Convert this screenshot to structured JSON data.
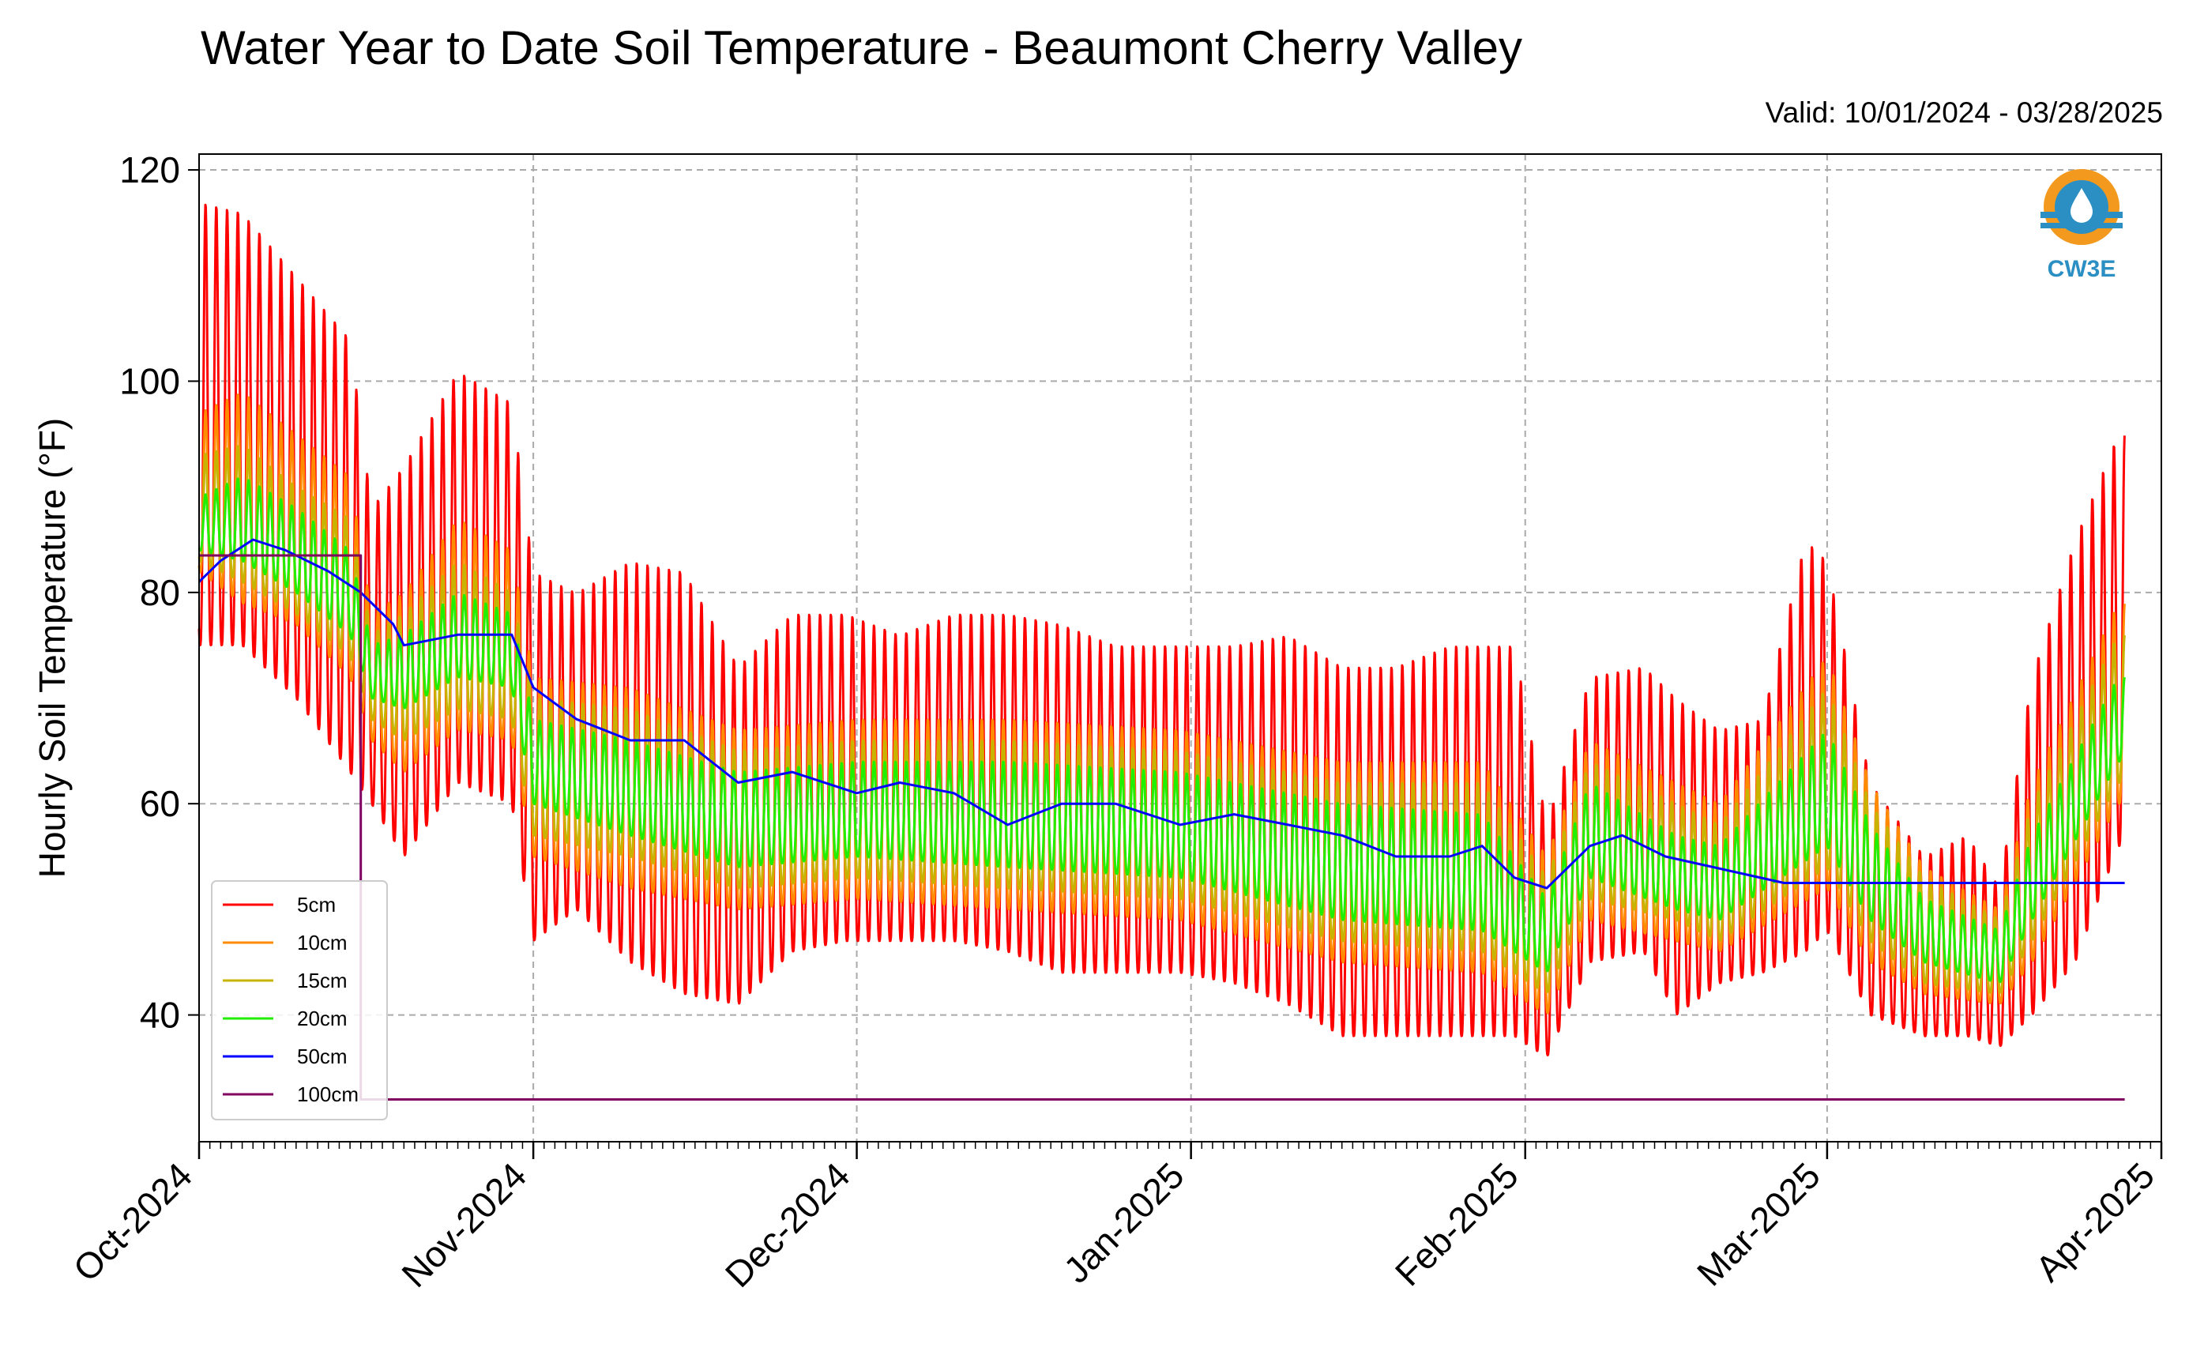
{
  "header": {
    "title": "Water Year to Date Soil Temperature - Beaumont Cherry Valley",
    "valid": "Valid: 10/01/2024 - 03/28/2025"
  },
  "logo": {
    "text": "CW3E",
    "icon": "water-drop-logo",
    "colors": {
      "orange": "#f39a1e",
      "blue": "#2b8fc4"
    }
  },
  "chart_data": {
    "type": "line",
    "title": "Water Year to Date Soil Temperature - Beaumont Cherry Valley",
    "subtitle": "Valid: 10/01/2024 - 03/28/2025",
    "ylabel": "Hourly Soil Temperature (°F)",
    "xlabel": "",
    "ylim": [
      28,
      121.5
    ],
    "xlim": [
      "2024-10-01",
      "2025-04-01"
    ],
    "yticks": [
      40,
      60,
      80,
      100,
      120
    ],
    "xticks": [
      "Oct-2024",
      "Nov-2024",
      "Dec-2024",
      "Jan-2025",
      "Feb-2025",
      "Mar-2025",
      "Apr-2025"
    ],
    "xtick_dates": [
      "2024-10-01",
      "2024-11-01",
      "2024-12-01",
      "2025-01-01",
      "2025-02-01",
      "2025-03-01",
      "2025-04-01"
    ],
    "grid": true,
    "legend_position": "lower-left",
    "envelope_note": "5-20cm series are hourly with a daily cycle; listed points give daily minima and maxima per date.",
    "series": [
      {
        "name": "5cm",
        "color": "#ff0000",
        "envelope": {
          "dates": [
            "2024-10-01",
            "2024-10-05",
            "2024-10-10",
            "2024-10-15",
            "2024-10-17",
            "2024-10-20",
            "2024-10-25",
            "2024-10-30",
            "2024-11-01",
            "2024-11-05",
            "2024-11-10",
            "2024-11-15",
            "2024-11-20",
            "2024-11-25",
            "2024-11-30",
            "2024-12-05",
            "2024-12-10",
            "2024-12-15",
            "2024-12-20",
            "2024-12-25",
            "2024-12-31",
            "2025-01-05",
            "2025-01-10",
            "2025-01-15",
            "2025-01-20",
            "2025-01-25",
            "2025-01-28",
            "2025-01-31",
            "2025-02-03",
            "2025-02-07",
            "2025-02-12",
            "2025-02-15",
            "2025-02-19",
            "2025-02-23",
            "2025-02-27",
            "2025-03-01",
            "2025-03-05",
            "2025-03-10",
            "2025-03-14",
            "2025-03-17",
            "2025-03-20",
            "2025-03-24",
            "2025-03-28"
          ],
          "max": [
            117,
            116,
            110,
            104,
            88,
            92,
            101,
            98,
            82,
            80,
            83,
            82,
            73,
            78,
            78,
            76,
            78,
            78,
            77,
            75,
            75,
            75,
            76,
            73,
            73,
            75,
            75,
            75,
            58,
            72,
            73,
            70,
            67,
            68,
            85,
            83,
            62,
            55,
            57,
            52,
            72,
            85,
            95
          ],
          "min": [
            75,
            75,
            70,
            63,
            60,
            55,
            62,
            60,
            47,
            50,
            45,
            42,
            41,
            46,
            47,
            47,
            47,
            46,
            44,
            44,
            44,
            43,
            41,
            38,
            38,
            38,
            38,
            38,
            36,
            45,
            46,
            40,
            43,
            44,
            46,
            48,
            40,
            38,
            38,
            37,
            40,
            45,
            56
          ]
        }
      },
      {
        "name": "10cm",
        "color": "#ff8c00",
        "envelope": {
          "dates": [
            "2024-10-01",
            "2024-10-05",
            "2024-10-10",
            "2024-10-15",
            "2024-10-17",
            "2024-10-20",
            "2024-10-25",
            "2024-10-30",
            "2024-11-01",
            "2024-11-10",
            "2024-11-20",
            "2024-12-01",
            "2024-12-15",
            "2024-12-31",
            "2025-01-15",
            "2025-01-28",
            "2025-02-03",
            "2025-02-07",
            "2025-02-15",
            "2025-02-19",
            "2025-03-01",
            "2025-03-05",
            "2025-03-10",
            "2025-03-17",
            "2025-03-20",
            "2025-03-28"
          ],
          "max": [
            97,
            99,
            95,
            91,
            78,
            80,
            87,
            84,
            72,
            71,
            67,
            68,
            68,
            67,
            64,
            64,
            55,
            66,
            62,
            60,
            74,
            62,
            54,
            50,
            62,
            79
          ],
          "min": [
            82,
            79,
            77,
            72,
            66,
            63,
            67,
            66,
            55,
            52,
            50,
            51,
            50,
            49,
            45,
            44,
            40,
            49,
            47,
            46,
            52,
            45,
            42,
            41,
            45,
            60
          ]
        }
      },
      {
        "name": "15cm",
        "color": "#c8b400",
        "envelope": {
          "dates": [
            "2024-10-01",
            "2024-10-05",
            "2024-10-10",
            "2024-10-15",
            "2024-10-17",
            "2024-10-20",
            "2024-10-25",
            "2024-10-30",
            "2024-11-01",
            "2024-11-10",
            "2024-11-20",
            "2024-12-01",
            "2024-12-15",
            "2024-12-31",
            "2025-01-15",
            "2025-01-28",
            "2025-02-03",
            "2025-02-07",
            "2025-02-15",
            "2025-02-19",
            "2025-03-01",
            "2025-03-05",
            "2025-03-10",
            "2025-03-17",
            "2025-03-20",
            "2025-03-28"
          ],
          "max": [
            93,
            94,
            90,
            87,
            76,
            78,
            83,
            80,
            70,
            69,
            65,
            66,
            66,
            65,
            62,
            62,
            53,
            64,
            60,
            58,
            71,
            60,
            53,
            49,
            60,
            76
          ],
          "min": [
            83,
            81,
            78,
            74,
            68,
            66,
            69,
            68,
            57,
            55,
            52,
            53,
            52,
            51,
            47,
            46,
            42,
            51,
            49,
            47,
            54,
            47,
            43,
            42,
            47,
            62
          ]
        }
      },
      {
        "name": "20cm",
        "color": "#22ee00",
        "envelope": {
          "dates": [
            "2024-10-01",
            "2024-10-05",
            "2024-10-10",
            "2024-10-15",
            "2024-10-17",
            "2024-10-20",
            "2024-10-25",
            "2024-10-30",
            "2024-11-01",
            "2024-11-10",
            "2024-11-20",
            "2024-12-01",
            "2024-12-15",
            "2024-12-31",
            "2025-01-15",
            "2025-01-28",
            "2025-02-03",
            "2025-02-07",
            "2025-02-15",
            "2025-02-19",
            "2025-03-01",
            "2025-03-05",
            "2025-03-10",
            "2025-03-17",
            "2025-03-20",
            "2025-03-28"
          ],
          "max": [
            89,
            91,
            88,
            84,
            75,
            76,
            80,
            78,
            68,
            66,
            63,
            64,
            64,
            63,
            60,
            59,
            51,
            62,
            57,
            56,
            67,
            58,
            51,
            48,
            57,
            72
          ],
          "min": [
            84,
            83,
            80,
            76,
            70,
            69,
            72,
            71,
            60,
            57,
            54,
            55,
            54,
            53,
            49,
            48,
            44,
            53,
            50,
            49,
            56,
            49,
            45,
            43,
            49,
            64
          ]
        }
      },
      {
        "name": "50cm",
        "color": "#0000ff",
        "x": [
          "2024-10-01",
          "2024-10-03",
          "2024-10-06",
          "2024-10-09",
          "2024-10-13",
          "2024-10-16",
          "2024-10-19",
          "2024-10-20",
          "2024-10-25",
          "2024-10-30",
          "2024-11-01",
          "2024-11-05",
          "2024-11-10",
          "2024-11-15",
          "2024-11-20",
          "2024-11-25",
          "2024-12-01",
          "2024-12-05",
          "2024-12-10",
          "2024-12-15",
          "2024-12-20",
          "2024-12-25",
          "2024-12-31",
          "2025-01-05",
          "2025-01-10",
          "2025-01-15",
          "2025-01-20",
          "2025-01-25",
          "2025-01-28",
          "2025-01-31",
          "2025-02-03",
          "2025-02-07",
          "2025-02-10",
          "2025-02-14",
          "2025-02-25",
          "2025-03-15",
          "2025-03-28"
        ],
        "y": [
          81,
          83,
          85,
          84,
          82,
          80,
          77,
          75,
          76,
          76,
          71,
          68,
          66,
          66,
          62,
          63,
          61,
          62,
          61,
          58,
          60,
          60,
          58,
          59,
          58,
          57,
          55,
          55,
          56,
          53,
          52,
          56,
          57,
          55,
          52.5,
          52.5,
          52.5
        ]
      },
      {
        "name": "100cm",
        "color": "#800060",
        "x": [
          "2024-10-01",
          "2024-10-16",
          "2024-10-16",
          "2025-03-28"
        ],
        "y": [
          83.5,
          83.5,
          32,
          32
        ]
      }
    ]
  }
}
